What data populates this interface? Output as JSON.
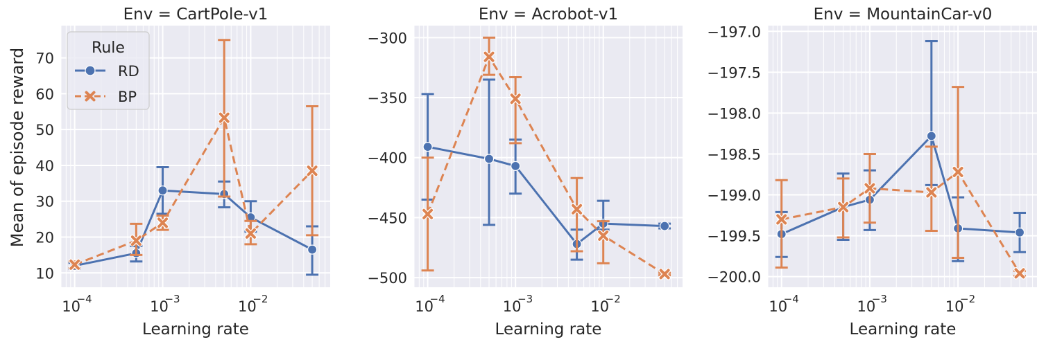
{
  "figure": {
    "ylabel": "Mean of episode reward",
    "legend": {
      "title": "Rule",
      "placement": "top-left",
      "entries": [
        {
          "label": "RD",
          "color": "#4c72b0",
          "marker": "circle",
          "line": "solid"
        },
        {
          "label": "BP",
          "color": "#dd8452",
          "marker": "x",
          "line": "dashed"
        }
      ]
    },
    "style": {
      "background": "#eaeaf2",
      "grid": true,
      "grid_minor": true
    }
  },
  "chart_data": [
    {
      "type": "line",
      "title": "Env = CartPole-v1",
      "xlabel": "Learning rate",
      "ylabel": "Mean of episode reward",
      "xscale": "log",
      "xlim": [
        7e-05,
        0.08
      ],
      "ylim": [
        6,
        79
      ],
      "yticks": [
        10,
        20,
        30,
        40,
        50,
        60,
        70
      ],
      "x": [
        0.0001,
        0.0005,
        0.001,
        0.005,
        0.01,
        0.05
      ],
      "series": [
        {
          "name": "RD",
          "values": [
            12,
            15.5,
            33,
            32,
            25.5,
            16.5
          ],
          "err_low": [
            11.2,
            13.2,
            26.5,
            28.3,
            21.5,
            9.5
          ],
          "err_high": [
            12.8,
            17.5,
            39.5,
            35.5,
            30,
            23
          ]
        },
        {
          "name": "BP",
          "values": [
            12.3,
            19,
            24,
            53.3,
            21,
            38.5
          ],
          "err_low": [
            11.3,
            15,
            22,
            31.3,
            18,
            20.5
          ],
          "err_high": [
            13.2,
            23.7,
            26,
            75,
            24.5,
            56.5
          ]
        }
      ]
    },
    {
      "type": "line",
      "title": "Env = Acrobot-v1",
      "xlabel": "Learning rate",
      "ylabel": "",
      "xscale": "log",
      "xlim": [
        7e-05,
        0.08
      ],
      "ylim": [
        -508,
        -290
      ],
      "yticks": [
        -300,
        -350,
        -400,
        -450,
        -500
      ],
      "x": [
        0.0001,
        0.0005,
        0.001,
        0.005,
        0.01,
        0.05
      ],
      "series": [
        {
          "name": "RD",
          "values": [
            -391,
            -401,
            -407,
            -472,
            -455,
            -457
          ],
          "err_low": [
            -435,
            -456,
            -430,
            -485,
            -460,
            -459
          ],
          "err_high": [
            -347,
            -335,
            -385,
            -460,
            -436,
            -455
          ]
        },
        {
          "name": "BP",
          "values": [
            -447,
            -316,
            -351,
            -443,
            -465,
            -497
          ],
          "err_low": [
            -494,
            -331,
            -388,
            -478,
            -488,
            -498
          ],
          "err_high": [
            -400,
            -300,
            -333,
            -417,
            -453,
            -496
          ]
        }
      ]
    },
    {
      "type": "line",
      "title": "Env = MountainCar-v0",
      "xlabel": "Learning rate",
      "ylabel": "",
      "xscale": "log",
      "xlim": [
        7e-05,
        0.08
      ],
      "ylim": [
        -200.13,
        -196.93
      ],
      "yticks": [
        -197.0,
        -197.5,
        -198.0,
        -198.5,
        -199.0,
        -199.5,
        -200.0
      ],
      "x": [
        0.0001,
        0.0005,
        0.001,
        0.005,
        0.01,
        0.05
      ],
      "series": [
        {
          "name": "RD",
          "values": [
            -199.48,
            -199.15,
            -199.06,
            -198.28,
            -199.41,
            -199.46
          ],
          "err_low": [
            -199.76,
            -199.55,
            -199.43,
            -198.88,
            -199.81,
            -199.7
          ],
          "err_high": [
            -199.21,
            -198.74,
            -198.7,
            -197.12,
            -199.03,
            -199.22
          ]
        },
        {
          "name": "BP",
          "values": [
            -199.3,
            -199.15,
            -198.92,
            -198.97,
            -198.72,
            -199.96
          ],
          "err_low": [
            -199.89,
            -199.52,
            -199.34,
            -199.44,
            -199.77,
            -199.99
          ],
          "err_high": [
            -198.82,
            -198.8,
            -198.5,
            -198.41,
            -197.68,
            -199.93
          ]
        }
      ]
    }
  ]
}
